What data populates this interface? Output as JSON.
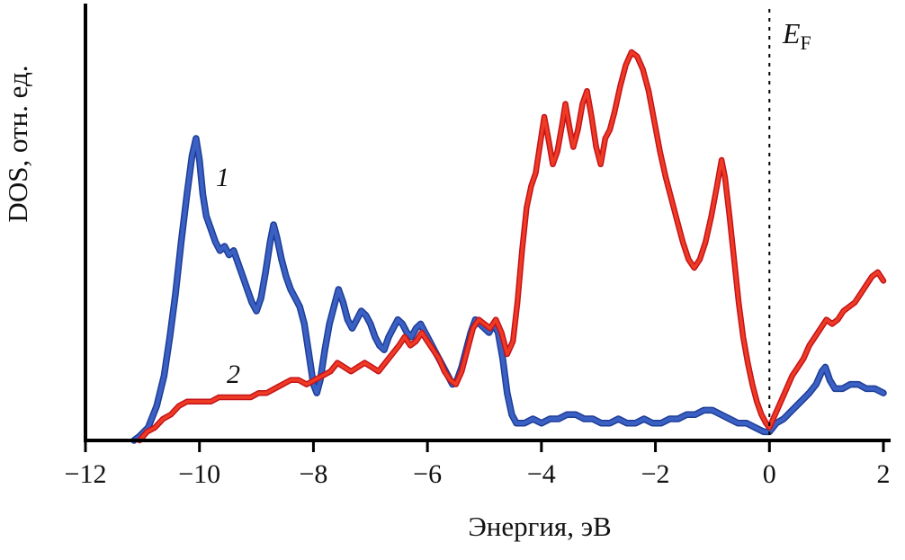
{
  "labels": {
    "fermi_main": "E",
    "fermi_sub": "F"
  },
  "chart_data": {
    "type": "line",
    "title": "",
    "xlabel": "Энергия, эВ",
    "ylabel": "DOS, отн. ед.",
    "xlim": [
      -12,
      2
    ],
    "ylim": [
      0,
      100
    ],
    "grid": false,
    "legend_position": "none",
    "x_ticks": [
      {
        "value": -12,
        "label": "−12"
      },
      {
        "value": -10,
        "label": "−10"
      },
      {
        "value": -8,
        "label": "−8"
      },
      {
        "value": -6,
        "label": "−6"
      },
      {
        "value": -4,
        "label": "−4"
      },
      {
        "value": -2,
        "label": "−2"
      },
      {
        "value": 0,
        "label": "0"
      },
      {
        "value": 2,
        "label": "2"
      }
    ],
    "fermi_line": {
      "x": 0,
      "style": "dashed",
      "label": "EF"
    },
    "series": [
      {
        "name": "1",
        "color": "#3b60c4",
        "edge_color": "#1d3d96",
        "width": 4.5,
        "points": [
          [
            -11.15,
            0
          ],
          [
            -11.05,
            1
          ],
          [
            -10.9,
            3
          ],
          [
            -10.75,
            8
          ],
          [
            -10.62,
            15
          ],
          [
            -10.52,
            24
          ],
          [
            -10.42,
            34
          ],
          [
            -10.32,
            46
          ],
          [
            -10.22,
            57
          ],
          [
            -10.13,
            66
          ],
          [
            -10.06,
            70
          ],
          [
            -10.0,
            65
          ],
          [
            -9.94,
            57
          ],
          [
            -9.88,
            52
          ],
          [
            -9.8,
            49
          ],
          [
            -9.72,
            46
          ],
          [
            -9.64,
            44
          ],
          [
            -9.56,
            45
          ],
          [
            -9.48,
            43
          ],
          [
            -9.4,
            44
          ],
          [
            -9.32,
            41
          ],
          [
            -9.24,
            38
          ],
          [
            -9.16,
            35
          ],
          [
            -9.08,
            32
          ],
          [
            -9.0,
            30
          ],
          [
            -8.92,
            33
          ],
          [
            -8.84,
            39
          ],
          [
            -8.76,
            46
          ],
          [
            -8.7,
            50
          ],
          [
            -8.64,
            47
          ],
          [
            -8.56,
            42
          ],
          [
            -8.48,
            38
          ],
          [
            -8.4,
            35
          ],
          [
            -8.32,
            33
          ],
          [
            -8.24,
            31
          ],
          [
            -8.16,
            27
          ],
          [
            -8.08,
            20
          ],
          [
            -8.0,
            13
          ],
          [
            -7.94,
            11
          ],
          [
            -7.88,
            14
          ],
          [
            -7.8,
            21
          ],
          [
            -7.72,
            27
          ],
          [
            -7.64,
            31
          ],
          [
            -7.56,
            35
          ],
          [
            -7.48,
            32
          ],
          [
            -7.4,
            28
          ],
          [
            -7.32,
            26
          ],
          [
            -7.24,
            28
          ],
          [
            -7.16,
            30
          ],
          [
            -7.08,
            29
          ],
          [
            -7.0,
            27
          ],
          [
            -6.92,
            24
          ],
          [
            -6.84,
            22
          ],
          [
            -6.76,
            21
          ],
          [
            -6.68,
            24
          ],
          [
            -6.6,
            26
          ],
          [
            -6.52,
            28
          ],
          [
            -6.44,
            27
          ],
          [
            -6.36,
            25
          ],
          [
            -6.28,
            24
          ],
          [
            -6.2,
            26
          ],
          [
            -6.12,
            27
          ],
          [
            -6.04,
            25
          ],
          [
            -5.96,
            23
          ],
          [
            -5.88,
            21
          ],
          [
            -5.8,
            19
          ],
          [
            -5.72,
            17
          ],
          [
            -5.64,
            15
          ],
          [
            -5.56,
            13
          ],
          [
            -5.48,
            14
          ],
          [
            -5.4,
            17
          ],
          [
            -5.32,
            21
          ],
          [
            -5.24,
            25
          ],
          [
            -5.16,
            28
          ],
          [
            -5.08,
            27
          ],
          [
            -5.0,
            26
          ],
          [
            -4.92,
            25
          ],
          [
            -4.84,
            27
          ],
          [
            -4.76,
            25
          ],
          [
            -4.68,
            19
          ],
          [
            -4.6,
            11
          ],
          [
            -4.52,
            6
          ],
          [
            -4.44,
            4
          ],
          [
            -4.3,
            4
          ],
          [
            -4.15,
            5
          ],
          [
            -4.0,
            4
          ],
          [
            -3.85,
            5
          ],
          [
            -3.7,
            5
          ],
          [
            -3.55,
            6
          ],
          [
            -3.4,
            6
          ],
          [
            -3.25,
            5
          ],
          [
            -3.1,
            5
          ],
          [
            -2.95,
            4
          ],
          [
            -2.8,
            4
          ],
          [
            -2.65,
            5
          ],
          [
            -2.5,
            4
          ],
          [
            -2.35,
            4
          ],
          [
            -2.2,
            5
          ],
          [
            -2.05,
            4
          ],
          [
            -1.9,
            4
          ],
          [
            -1.75,
            5
          ],
          [
            -1.6,
            5
          ],
          [
            -1.45,
            6
          ],
          [
            -1.3,
            6
          ],
          [
            -1.15,
            7
          ],
          [
            -1.0,
            7
          ],
          [
            -0.85,
            6
          ],
          [
            -0.7,
            5
          ],
          [
            -0.55,
            4
          ],
          [
            -0.4,
            4
          ],
          [
            -0.25,
            3
          ],
          [
            -0.1,
            2
          ],
          [
            0.0,
            2
          ],
          [
            0.12,
            4
          ],
          [
            0.25,
            5
          ],
          [
            0.4,
            7
          ],
          [
            0.55,
            9
          ],
          [
            0.7,
            11
          ],
          [
            0.82,
            13
          ],
          [
            0.92,
            16
          ],
          [
            0.98,
            17
          ],
          [
            1.06,
            14
          ],
          [
            1.15,
            12
          ],
          [
            1.28,
            12
          ],
          [
            1.42,
            13
          ],
          [
            1.56,
            13
          ],
          [
            1.7,
            12
          ],
          [
            1.85,
            12
          ],
          [
            2.0,
            11
          ]
        ]
      },
      {
        "name": "2",
        "color": "#ef3b24",
        "edge_color": "#c3131b",
        "width": 3.5,
        "points": [
          [
            -11.05,
            0
          ],
          [
            -10.92,
            2
          ],
          [
            -10.78,
            3
          ],
          [
            -10.64,
            5
          ],
          [
            -10.5,
            6
          ],
          [
            -10.36,
            8
          ],
          [
            -10.22,
            9
          ],
          [
            -10.08,
            9
          ],
          [
            -9.94,
            9
          ],
          [
            -9.8,
            9
          ],
          [
            -9.66,
            10
          ],
          [
            -9.52,
            10
          ],
          [
            -9.38,
            10
          ],
          [
            -9.24,
            10
          ],
          [
            -9.1,
            10
          ],
          [
            -8.96,
            11
          ],
          [
            -8.82,
            11
          ],
          [
            -8.68,
            12
          ],
          [
            -8.54,
            13
          ],
          [
            -8.4,
            14
          ],
          [
            -8.26,
            14
          ],
          [
            -8.12,
            13
          ],
          [
            -7.98,
            14
          ],
          [
            -7.84,
            15
          ],
          [
            -7.7,
            16
          ],
          [
            -7.58,
            18
          ],
          [
            -7.46,
            17
          ],
          [
            -7.34,
            16
          ],
          [
            -7.22,
            17
          ],
          [
            -7.1,
            18
          ],
          [
            -6.98,
            17
          ],
          [
            -6.86,
            16
          ],
          [
            -6.74,
            18
          ],
          [
            -6.62,
            20
          ],
          [
            -6.5,
            22
          ],
          [
            -6.4,
            24
          ],
          [
            -6.3,
            22
          ],
          [
            -6.2,
            23
          ],
          [
            -6.1,
            25
          ],
          [
            -6.0,
            23
          ],
          [
            -5.9,
            21
          ],
          [
            -5.8,
            19
          ],
          [
            -5.7,
            16
          ],
          [
            -5.6,
            14
          ],
          [
            -5.5,
            13
          ],
          [
            -5.4,
            16
          ],
          [
            -5.3,
            21
          ],
          [
            -5.2,
            26
          ],
          [
            -5.1,
            28
          ],
          [
            -5.0,
            27
          ],
          [
            -4.9,
            26
          ],
          [
            -4.8,
            28
          ],
          [
            -4.7,
            25
          ],
          [
            -4.6,
            20
          ],
          [
            -4.5,
            23
          ],
          [
            -4.42,
            32
          ],
          [
            -4.34,
            44
          ],
          [
            -4.26,
            54
          ],
          [
            -4.18,
            59
          ],
          [
            -4.1,
            62
          ],
          [
            -4.02,
            69
          ],
          [
            -3.95,
            75
          ],
          [
            -3.88,
            70
          ],
          [
            -3.8,
            64
          ],
          [
            -3.72,
            67
          ],
          [
            -3.64,
            73
          ],
          [
            -3.58,
            78
          ],
          [
            -3.5,
            72
          ],
          [
            -3.44,
            68
          ],
          [
            -3.36,
            72
          ],
          [
            -3.28,
            78
          ],
          [
            -3.2,
            81
          ],
          [
            -3.12,
            75
          ],
          [
            -3.04,
            68
          ],
          [
            -2.96,
            64
          ],
          [
            -2.88,
            70
          ],
          [
            -2.8,
            72
          ],
          [
            -2.72,
            76
          ],
          [
            -2.62,
            82
          ],
          [
            -2.52,
            87
          ],
          [
            -2.42,
            90
          ],
          [
            -2.32,
            89
          ],
          [
            -2.22,
            86
          ],
          [
            -2.12,
            81
          ],
          [
            -2.02,
            74
          ],
          [
            -1.92,
            67
          ],
          [
            -1.82,
            61
          ],
          [
            -1.72,
            56
          ],
          [
            -1.62,
            51
          ],
          [
            -1.52,
            46
          ],
          [
            -1.42,
            42
          ],
          [
            -1.32,
            40
          ],
          [
            -1.22,
            42
          ],
          [
            -1.12,
            46
          ],
          [
            -1.02,
            52
          ],
          [
            -0.92,
            59
          ],
          [
            -0.84,
            65
          ],
          [
            -0.78,
            61
          ],
          [
            -0.7,
            52
          ],
          [
            -0.62,
            42
          ],
          [
            -0.54,
            32
          ],
          [
            -0.46,
            24
          ],
          [
            -0.38,
            18
          ],
          [
            -0.3,
            13
          ],
          [
            -0.22,
            9
          ],
          [
            -0.14,
            6
          ],
          [
            -0.06,
            4
          ],
          [
            0.0,
            3
          ],
          [
            0.1,
            6
          ],
          [
            0.2,
            9
          ],
          [
            0.3,
            12
          ],
          [
            0.4,
            15
          ],
          [
            0.5,
            17
          ],
          [
            0.6,
            19
          ],
          [
            0.7,
            22
          ],
          [
            0.8,
            24
          ],
          [
            0.9,
            26
          ],
          [
            1.0,
            28
          ],
          [
            1.1,
            27
          ],
          [
            1.2,
            28
          ],
          [
            1.3,
            30
          ],
          [
            1.4,
            31
          ],
          [
            1.5,
            32
          ],
          [
            1.6,
            34
          ],
          [
            1.7,
            36
          ],
          [
            1.8,
            38
          ],
          [
            1.9,
            39
          ],
          [
            2.0,
            37
          ]
        ]
      }
    ]
  }
}
